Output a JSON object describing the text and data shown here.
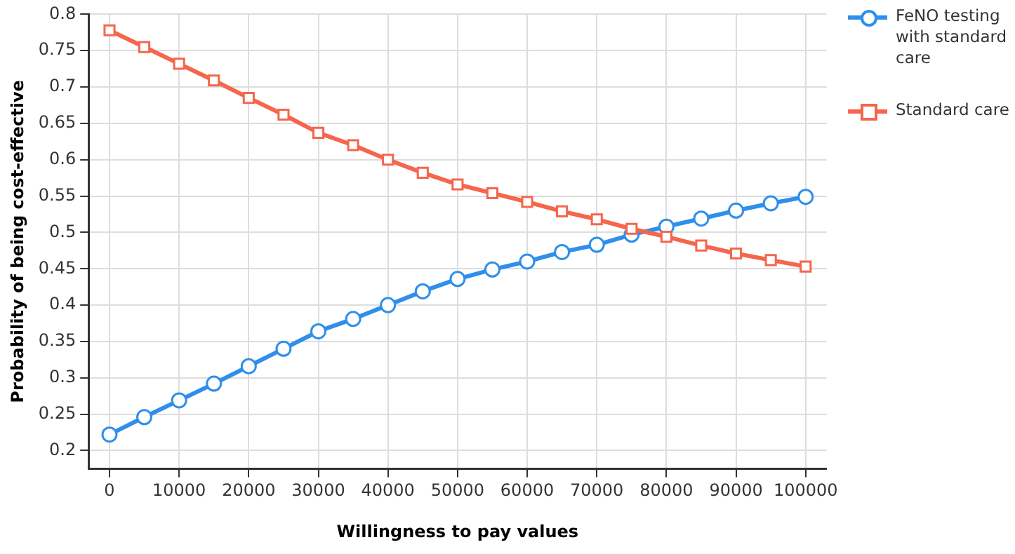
{
  "chart_data": {
    "type": "line",
    "xlabel": "Willingness to pay values",
    "ylabel": "Probability of being cost-effective",
    "x": [
      0,
      5000,
      10000,
      15000,
      20000,
      25000,
      30000,
      35000,
      40000,
      45000,
      50000,
      55000,
      60000,
      65000,
      70000,
      75000,
      80000,
      85000,
      90000,
      95000,
      100000
    ],
    "series": [
      {
        "name": "FeNO testing with standard care",
        "color": "#2f8fea",
        "marker": "circle",
        "values": [
          0.222,
          0.246,
          0.269,
          0.292,
          0.316,
          0.34,
          0.364,
          0.381,
          0.4,
          0.419,
          0.436,
          0.449,
          0.46,
          0.473,
          0.483,
          0.497,
          0.508,
          0.519,
          0.53,
          0.54,
          0.549
        ]
      },
      {
        "name": "Standard care",
        "color": "#f5664c",
        "marker": "square",
        "values": [
          0.778,
          0.755,
          0.732,
          0.709,
          0.685,
          0.662,
          0.637,
          0.62,
          0.6,
          0.582,
          0.566,
          0.554,
          0.542,
          0.529,
          0.518,
          0.505,
          0.494,
          0.482,
          0.471,
          0.462,
          0.453
        ]
      }
    ],
    "xlim": [
      -3000,
      103000
    ],
    "xticks": [
      0,
      10000,
      20000,
      30000,
      40000,
      50000,
      60000,
      70000,
      80000,
      90000,
      100000
    ],
    "ylim": [
      0.175,
      0.8
    ],
    "yticks": [
      0.2,
      0.25,
      0.3,
      0.35,
      0.4,
      0.45,
      0.5,
      0.55,
      0.6,
      0.65,
      0.7,
      0.75,
      0.8
    ],
    "grid": true,
    "legend": "top right",
    "line_style": "solid"
  }
}
